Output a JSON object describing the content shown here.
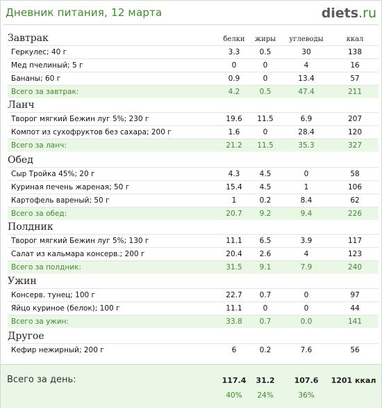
{
  "title": "Дневник питания, 12 марта",
  "logo": {
    "name": "diets",
    "tld": ".ru"
  },
  "columns": [
    "белки",
    "жиры",
    "углеводы",
    "ккал"
  ],
  "meals": [
    {
      "name": "Завтрак",
      "items": [
        {
          "name": "Геркулес; 40 г",
          "values": [
            "3.3",
            "0.5",
            "30",
            "138"
          ]
        },
        {
          "name": "Мед пчелиный; 5 г",
          "values": [
            "0",
            "0",
            "4",
            "16"
          ]
        },
        {
          "name": "Бананы; 60 г",
          "values": [
            "0.9",
            "0",
            "13.4",
            "57"
          ]
        }
      ],
      "total": {
        "name": "Всего за завтрак:",
        "values": [
          "4.2",
          "0.5",
          "47.4",
          "211"
        ]
      }
    },
    {
      "name": "Ланч",
      "items": [
        {
          "name": "Творог мягкий Бежин луг 5%; 230 г",
          "values": [
            "19.6",
            "11.5",
            "6.9",
            "207"
          ]
        },
        {
          "name": "Компот из сухофруктов без сахара; 200 г",
          "values": [
            "1.6",
            "0",
            "28.4",
            "120"
          ]
        }
      ],
      "total": {
        "name": "Всего за ланч:",
        "values": [
          "21.2",
          "11.5",
          "35.3",
          "327"
        ]
      }
    },
    {
      "name": "Обед",
      "items": [
        {
          "name": "Сыр Тройка 45%; 20 г",
          "values": [
            "4.3",
            "4.5",
            "0",
            "58"
          ]
        },
        {
          "name": "Куриная печень жареная; 50 г",
          "values": [
            "15.4",
            "4.5",
            "1",
            "106"
          ]
        },
        {
          "name": "Картофель вареный; 50 г",
          "values": [
            "1",
            "0.2",
            "8.4",
            "62"
          ]
        }
      ],
      "total": {
        "name": "Всего за обед:",
        "values": [
          "20.7",
          "9.2",
          "9.4",
          "226"
        ]
      }
    },
    {
      "name": "Полдник",
      "items": [
        {
          "name": "Творог мягкий Бежин луг 5%; 130 г",
          "values": [
            "11.1",
            "6.5",
            "3.9",
            "117"
          ]
        },
        {
          "name": "Салат из кальмара консерв.; 200 г",
          "values": [
            "20.4",
            "2.6",
            "4",
            "123"
          ]
        }
      ],
      "total": {
        "name": "Всего за полдник:",
        "values": [
          "31.5",
          "9.1",
          "7.9",
          "240"
        ]
      }
    },
    {
      "name": "Ужин",
      "items": [
        {
          "name": "Консерв. тунец; 100 г",
          "values": [
            "22.7",
            "0.7",
            "0",
            "97"
          ]
        },
        {
          "name": "Яйцо куриное (белок); 100 г",
          "values": [
            "11.1",
            "0",
            "0",
            "44"
          ]
        }
      ],
      "total": {
        "name": "Всего за ужин:",
        "values": [
          "33.8",
          "0.7",
          "0.0",
          "141"
        ]
      }
    },
    {
      "name": "Другое",
      "items": [
        {
          "name": "Кефир нежирный; 200 г",
          "values": [
            "6",
            "0.2",
            "7.6",
            "56"
          ]
        }
      ],
      "total": null
    }
  ],
  "day_total": {
    "label": "Всего за день:",
    "values": [
      "117.4",
      "31.2",
      "107.6",
      "1201 ккал"
    ],
    "percents": [
      "40%",
      "24%",
      "36%"
    ]
  }
}
